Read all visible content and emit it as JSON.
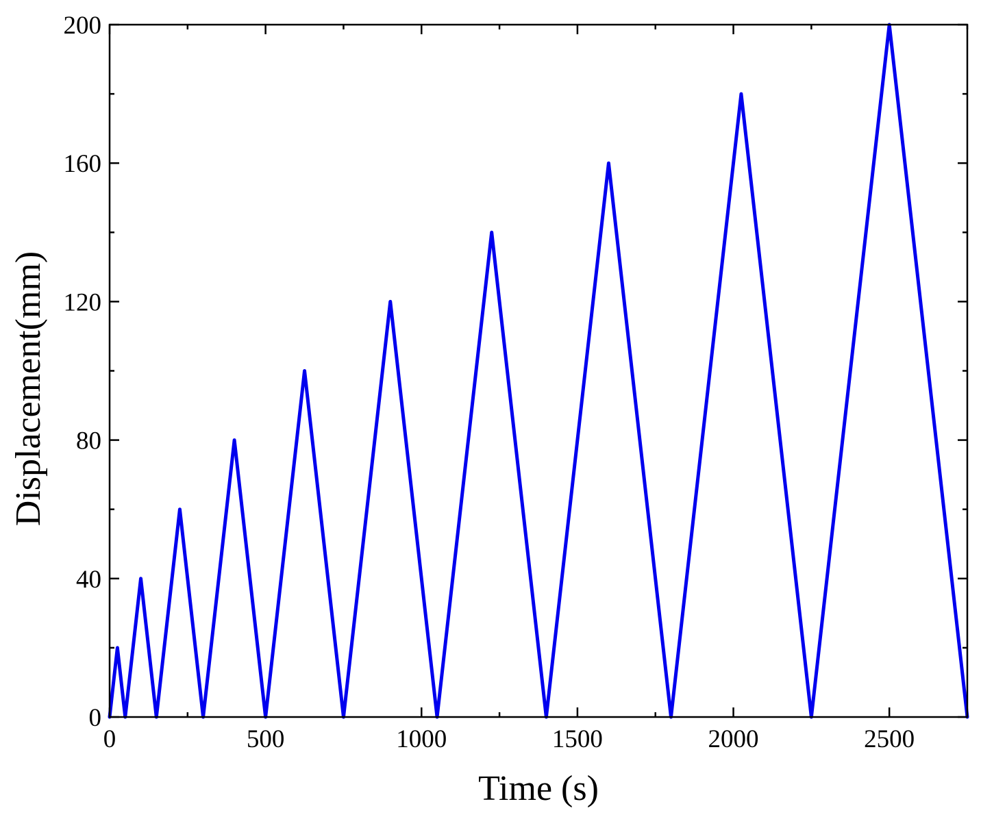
{
  "chart_data": {
    "type": "line",
    "xlabel": "Time (s)",
    "ylabel": "Displacement(mm)",
    "xlim": [
      0,
      2750
    ],
    "ylim": [
      0,
      200
    ],
    "x_ticks": [
      0,
      500,
      1000,
      1500,
      2000,
      2500
    ],
    "y_ticks": [
      0,
      40,
      80,
      120,
      160,
      200
    ],
    "x_tick_labels": [
      "0",
      "500",
      "1000",
      "1500",
      "2000",
      "2500"
    ],
    "y_tick_labels": [
      "0",
      "40",
      "80",
      "120",
      "160",
      "200"
    ],
    "grid": false,
    "series": [
      {
        "color": "#0000ee",
        "x": [
          0,
          25,
          50,
          100,
          150,
          225,
          300,
          400,
          500,
          625,
          750,
          900,
          1050,
          1225,
          1400,
          1600,
          1800,
          2025,
          2250,
          2500,
          2750
        ],
        "y": [
          0,
          20,
          0,
          40,
          0,
          60,
          0,
          80,
          0,
          100,
          0,
          120,
          0,
          140,
          0,
          160,
          0,
          180,
          0,
          200,
          0
        ]
      }
    ]
  }
}
